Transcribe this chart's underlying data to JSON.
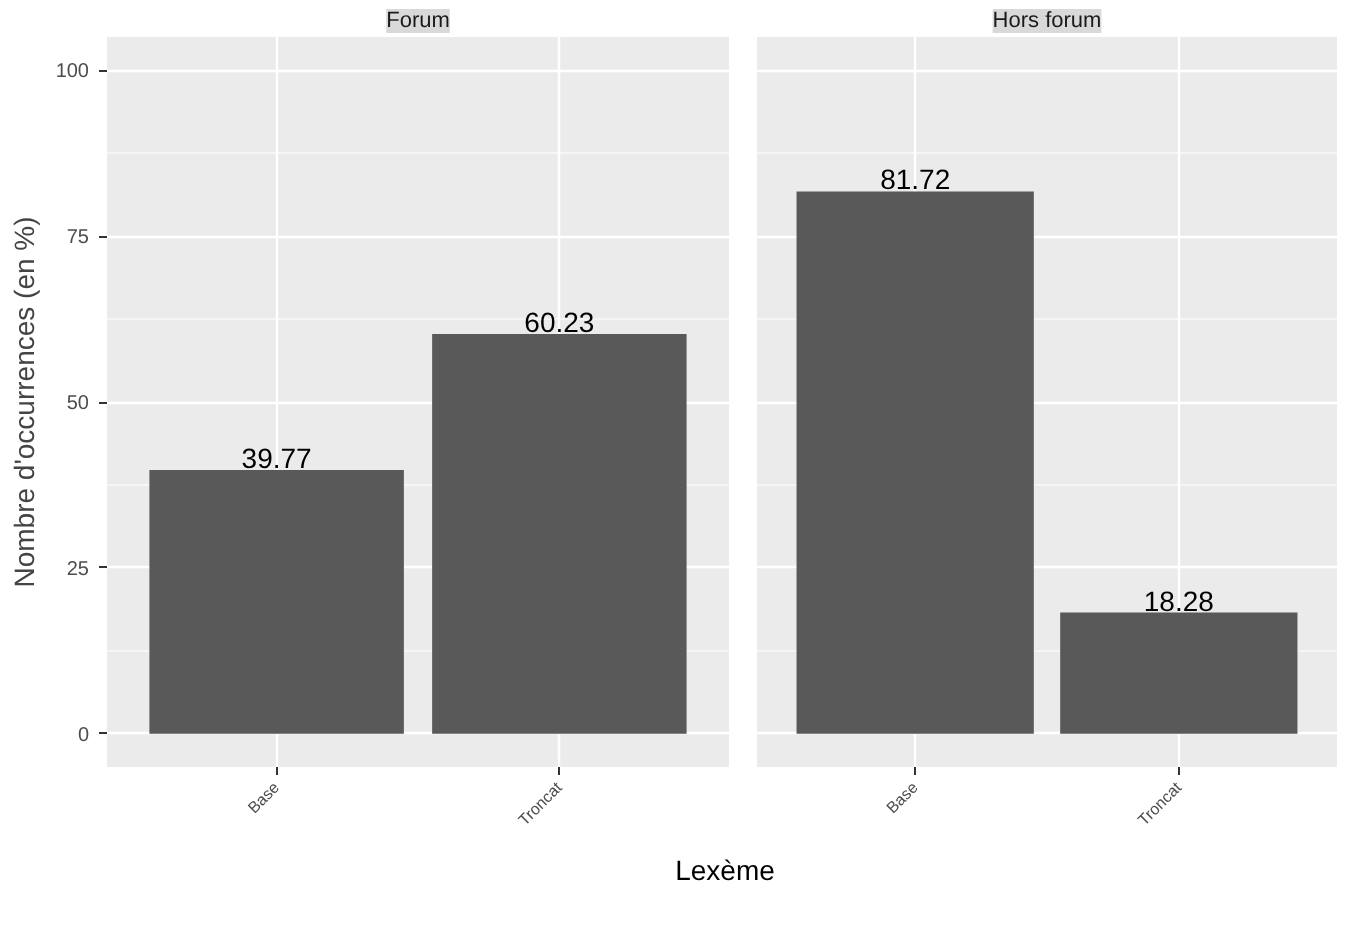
{
  "chart_data": [
    {
      "type": "bar",
      "title": "Forum",
      "xlabel": "Lexème",
      "ylabel": "Nombre d'occurrences (en %)",
      "categories": [
        "Base",
        "Troncat"
      ],
      "values": [
        39.77,
        60.23
      ],
      "color": "#595959",
      "data_labels": true,
      "ylim": [
        -5,
        105
      ],
      "yticks": [
        0,
        25,
        50,
        75,
        100
      ],
      "grid": true
    },
    {
      "type": "bar",
      "title": "Hors forum",
      "categories": [
        "Base",
        "Troncat"
      ],
      "values": [
        81.72,
        18.28
      ],
      "color": "#595959",
      "data_labels": true,
      "ylim": [
        -5,
        105
      ],
      "yticks": [
        0,
        25,
        50,
        75,
        100
      ],
      "grid": true,
      "tick_labels": "x"
    }
  ]
}
